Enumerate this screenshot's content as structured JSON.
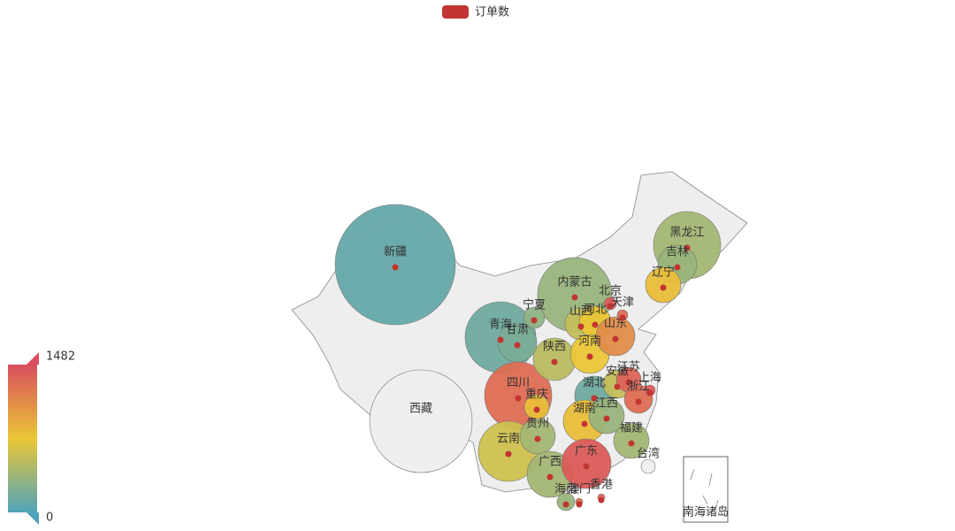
{
  "legend": {
    "name": "订单数",
    "color": "#c23531"
  },
  "visual_map": {
    "min": 0,
    "max": 1482,
    "colors": [
      "#50a3ba",
      "#eac736",
      "#d94e5d"
    ]
  },
  "regions": [
    {
      "name": "新疆",
      "value": 100
    },
    {
      "name": "西藏",
      "value": null
    },
    {
      "name": "青海",
      "value": 150
    },
    {
      "name": "内蒙古",
      "value": 350
    },
    {
      "name": "黑龙江",
      "value": 400
    },
    {
      "name": "吉林",
      "value": 350
    },
    {
      "name": "甘肃",
      "value": 200
    },
    {
      "name": "四川",
      "value": 1300
    },
    {
      "name": "云南",
      "value": 600
    },
    {
      "name": "宁夏",
      "value": 300
    },
    {
      "name": "陕西",
      "value": 500
    },
    {
      "name": "山西",
      "value": 550
    },
    {
      "name": "河北",
      "value": 750
    },
    {
      "name": "辽宁",
      "value": 800
    },
    {
      "name": "河南",
      "value": 750
    },
    {
      "name": "山东",
      "value": 1100
    },
    {
      "name": "湖北",
      "value": 150
    },
    {
      "name": "湖南",
      "value": 800
    },
    {
      "name": "重庆",
      "value": 800
    },
    {
      "name": "贵州",
      "value": 400
    },
    {
      "name": "广西",
      "value": 400
    },
    {
      "name": "广东",
      "value": 1400
    },
    {
      "name": "江西",
      "value": 350
    },
    {
      "name": "福建",
      "value": 400
    },
    {
      "name": "安徽",
      "value": 550
    },
    {
      "name": "江苏",
      "value": 1350
    },
    {
      "name": "浙江",
      "value": 1300
    },
    {
      "name": "上海",
      "value": 1400
    },
    {
      "name": "北京",
      "value": 1400
    },
    {
      "name": "天津",
      "value": 1300
    },
    {
      "name": "台湾",
      "value": null
    },
    {
      "name": "海南",
      "value": 350
    },
    {
      "name": "澳门",
      "value": 1300
    },
    {
      "name": "香港",
      "value": 1300
    }
  ],
  "islands_label": "南海诸岛"
}
